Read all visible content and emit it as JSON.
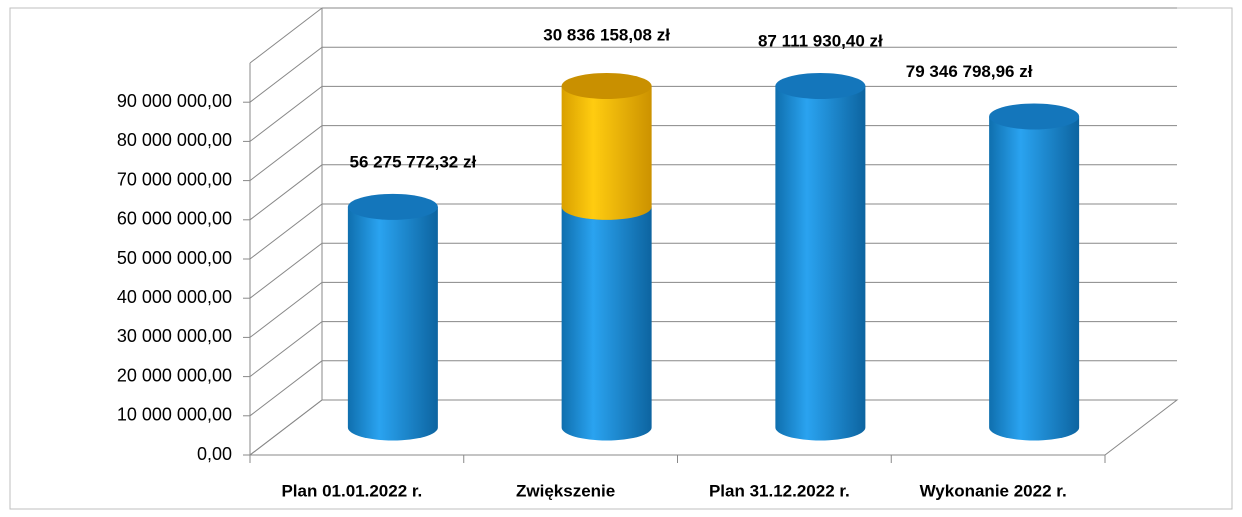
{
  "chart_data": {
    "type": "bar3d-stacked",
    "categories": [
      "Plan 01.01.2022 r.",
      "Zwiększenie",
      "Plan 31.12.2022 r.",
      "Wykonanie 2022 r."
    ],
    "series": [
      {
        "color": "#1b95e0",
        "values": [
          56275772.32,
          56275772.32,
          87111930.4,
          79346798.96
        ],
        "value_labels": [
          "56 275 772,32 zł",
          null,
          "87 111 930,40 zł",
          "79 346 798,96 zł"
        ]
      },
      {
        "color": "#ffc000",
        "values": [
          null,
          30836158.08,
          null,
          null
        ],
        "value_labels": [
          null,
          "30 836 158,08 zł",
          null,
          null
        ]
      }
    ],
    "ylim": [
      0,
      100000000
    ],
    "yticks": [
      {
        "value": 0,
        "label": "0,00"
      },
      {
        "value": 10000000,
        "label": "10 000 000,00"
      },
      {
        "value": 20000000,
        "label": "20 000 000,00"
      },
      {
        "value": 30000000,
        "label": "30 000 000,00"
      },
      {
        "value": 40000000,
        "label": "40 000 000,00"
      },
      {
        "value": 50000000,
        "label": "50 000 000,00"
      },
      {
        "value": 60000000,
        "label": "60 000 000,00"
      },
      {
        "value": 70000000,
        "label": "70 000 000,00"
      },
      {
        "value": 80000000,
        "label": "80 000 000,00"
      },
      {
        "value": 90000000,
        "label": "90 000 000,00"
      }
    ],
    "grid": true
  }
}
